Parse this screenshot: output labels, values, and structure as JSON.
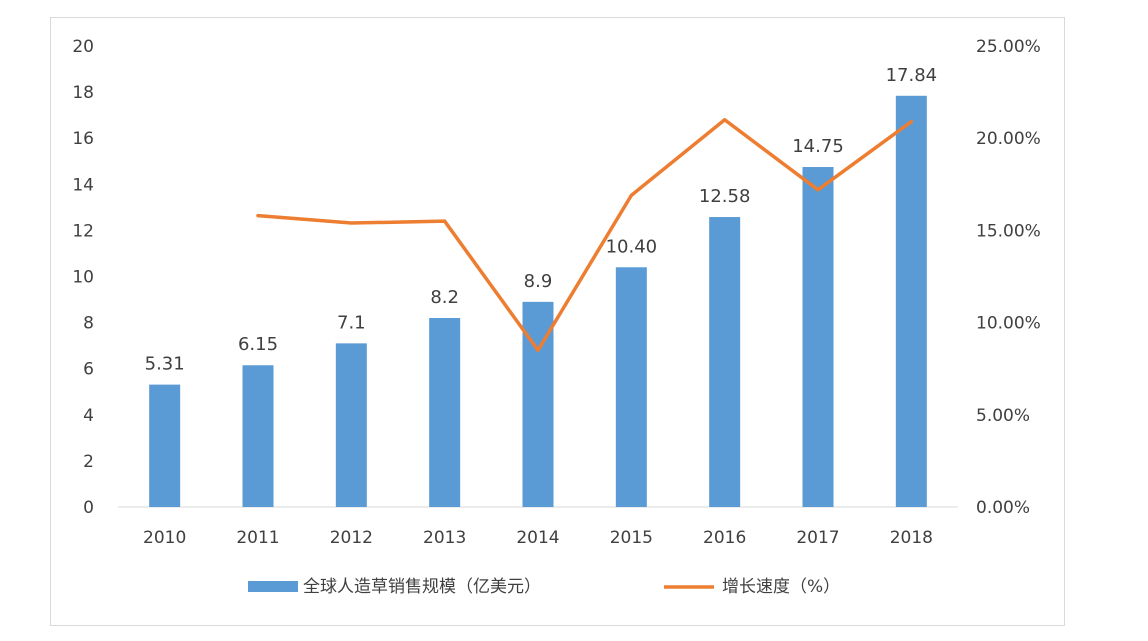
{
  "chart_data": {
    "type": "bar",
    "categories": [
      "2010",
      "2011",
      "2012",
      "2013",
      "2014",
      "2015",
      "2016",
      "2017",
      "2018"
    ],
    "series": [
      {
        "name": "全球人造草销售规模（亿美元）",
        "type": "bar",
        "axis": "left",
        "color": "#5b9bd5",
        "values": [
          5.31,
          6.15,
          7.1,
          8.2,
          8.9,
          10.4,
          12.58,
          14.75,
          17.84
        ],
        "labels": [
          "5.31",
          "6.15",
          "7.1",
          "8.2",
          "8.9",
          "10.40",
          "12.58",
          "14.75",
          "17.84"
        ]
      },
      {
        "name": "增长速度（%）",
        "type": "line",
        "axis": "right",
        "color": "#ed7d31",
        "values": [
          null,
          15.8,
          15.4,
          15.5,
          8.5,
          16.9,
          21.0,
          17.2,
          20.9
        ]
      }
    ],
    "y_left": {
      "ylim": [
        0,
        20
      ],
      "ticks": [
        "0",
        "2",
        "4",
        "6",
        "8",
        "10",
        "12",
        "14",
        "16",
        "18",
        "20"
      ]
    },
    "y_right": {
      "ylim": [
        0,
        25
      ],
      "ticks": [
        "0.00%",
        "5.00%",
        "10.00%",
        "15.00%",
        "20.00%",
        "25.00%"
      ]
    },
    "legend_position": "bottom",
    "grid": false
  }
}
